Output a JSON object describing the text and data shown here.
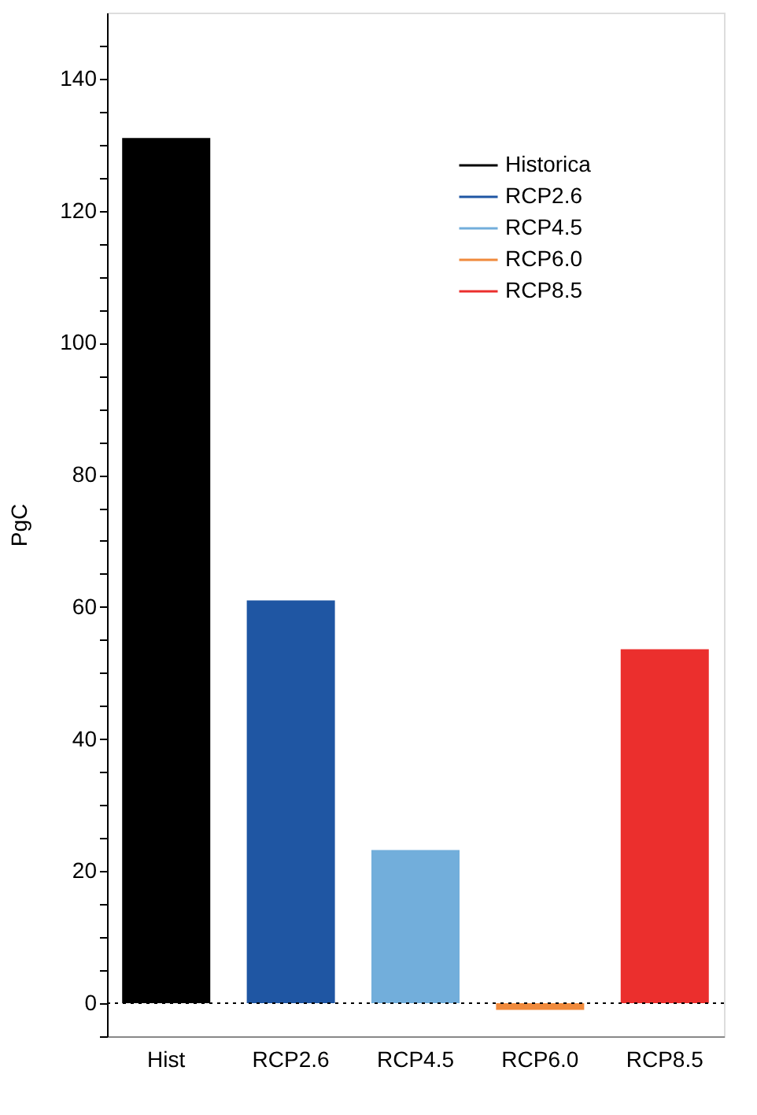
{
  "chart_data": {
    "type": "bar",
    "categories": [
      "Hist",
      "RCP2.6",
      "RCP4.5",
      "RCP6.0",
      "RCP8.5"
    ],
    "series": [
      {
        "name": "Historica",
        "color": "#000000",
        "values": [
          131,
          null,
          null,
          null,
          null
        ]
      },
      {
        "name": "RCP2.6",
        "color": "#1f56a3",
        "values": [
          null,
          61,
          null,
          null,
          null
        ]
      },
      {
        "name": "RCP4.5",
        "color": "#72aedb",
        "values": [
          null,
          null,
          23.2,
          null,
          null
        ]
      },
      {
        "name": "RCP6.0",
        "color": "#f08a3c",
        "values": [
          null,
          null,
          null,
          -1,
          null
        ]
      },
      {
        "name": "RCP8.5",
        "color": "#eb2f2d",
        "values": [
          null,
          null,
          null,
          null,
          53.6
        ]
      }
    ],
    "ylabel": "PgC",
    "ylim": [
      -5,
      150
    ],
    "yticks": [
      {
        "value": -5,
        "label": null
      },
      0,
      {
        "value": 5,
        "label": null
      },
      {
        "value": 10,
        "label": null
      },
      {
        "value": 15,
        "label": null
      },
      20,
      {
        "value": 25,
        "label": null
      },
      {
        "value": 30,
        "label": null
      },
      {
        "value": 35,
        "label": null
      },
      40,
      {
        "value": 45,
        "label": null
      },
      {
        "value": 50,
        "label": null
      },
      {
        "value": 55,
        "label": null
      },
      60,
      {
        "value": 65,
        "label": null
      },
      {
        "value": 70,
        "label": null
      },
      {
        "value": 75,
        "label": null
      },
      80,
      {
        "value": 85,
        "label": null
      },
      {
        "value": 90,
        "label": null
      },
      {
        "value": 95,
        "label": null
      },
      100,
      {
        "value": 105,
        "label": null
      },
      {
        "value": 110,
        "label": null
      },
      {
        "value": 115,
        "label": null
      },
      120,
      {
        "value": 125,
        "label": null
      },
      {
        "value": 130,
        "label": null
      },
      {
        "value": 135,
        "label": null
      },
      140,
      {
        "value": 145,
        "label": null
      }
    ],
    "ref_lines": [
      {
        "axis": "y",
        "value": 0,
        "label": null,
        "line_style": "dotted",
        "color": "#000000"
      }
    ],
    "legend": "top right",
    "grid": false
  }
}
